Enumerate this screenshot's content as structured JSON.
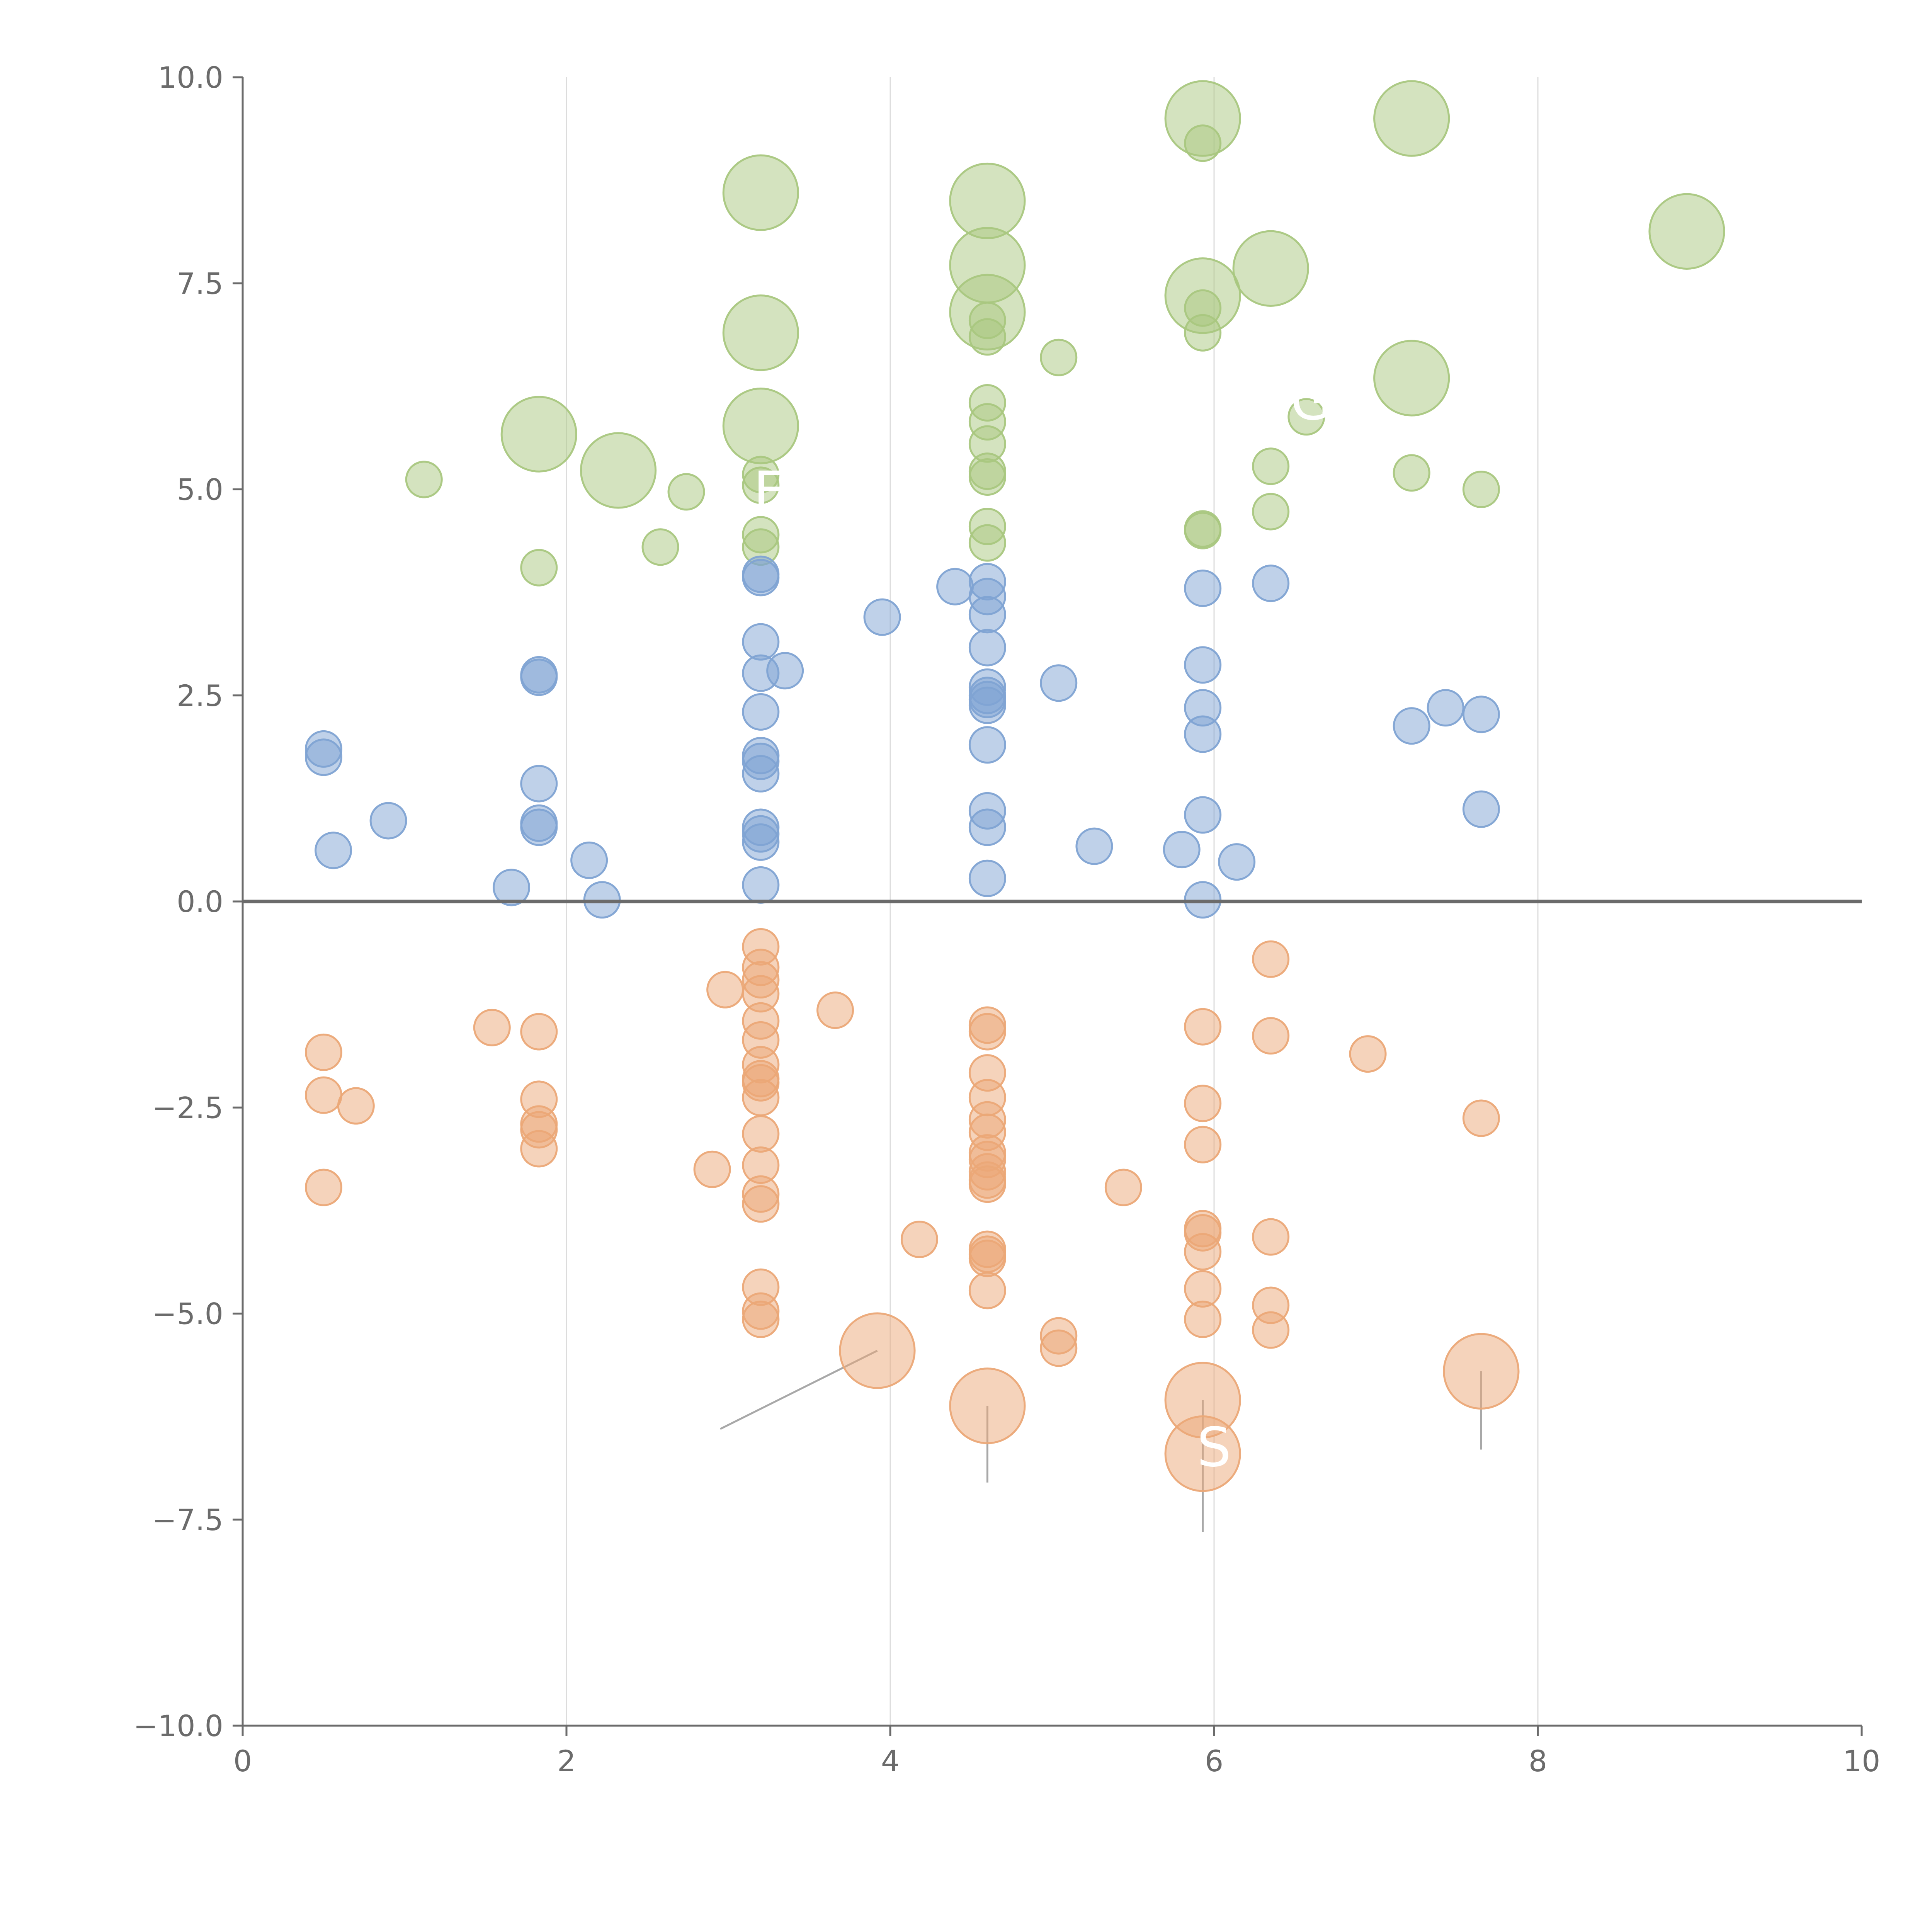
{
  "chart_data": {
    "type": "scatter",
    "title": "",
    "xlabel": "",
    "ylabel": "",
    "xlim": [
      0,
      10
    ],
    "ylim": [
      -10,
      10
    ],
    "x_ticks": [
      0,
      2,
      4,
      6,
      8,
      10
    ],
    "x_tick_labels": [
      "0",
      "2",
      "4",
      "6",
      "8",
      "10"
    ],
    "y_ticks": [
      -10,
      -7.5,
      -5,
      -2.5,
      0,
      2.5,
      5,
      7.5,
      10
    ],
    "y_tick_labels": [
      "−10.0",
      "−7.5",
      "−5.0",
      "−2.5",
      "0.0",
      "2.5",
      "5.0",
      "7.5",
      "10.0"
    ],
    "vertical_grid_at": [
      2,
      4,
      6,
      8
    ],
    "zero_line": 0,
    "size_unit": "relative (1 = smallest bubble)",
    "callouts": [
      {
        "text": "S",
        "x": 6.0,
        "y": -6.85
      },
      {
        "text": "G",
        "x": 6.6,
        "y": 5.85
      },
      {
        "text": "F",
        "x": 3.25,
        "y": 4.75
      }
    ],
    "series": [
      {
        "name": "upper",
        "color": "#a9c77f",
        "points": [
          [
            5.93,
            9.5,
            2.1
          ],
          [
            7.22,
            9.5,
            2.1
          ],
          [
            5.93,
            9.2,
            1
          ],
          [
            3.2,
            8.6,
            2.1
          ],
          [
            4.6,
            8.5,
            2.1
          ],
          [
            8.92,
            8.13,
            2.1
          ],
          [
            4.6,
            7.72,
            2.1
          ],
          [
            6.35,
            7.68,
            2.1
          ],
          [
            5.93,
            7.35,
            2.1
          ],
          [
            5.93,
            7.2,
            1
          ],
          [
            4.6,
            7.15,
            2.1
          ],
          [
            4.6,
            7.05,
            1
          ],
          [
            3.2,
            6.9,
            2.1
          ],
          [
            5.93,
            6.9,
            1
          ],
          [
            4.6,
            6.85,
            1
          ],
          [
            5.04,
            6.6,
            1
          ],
          [
            7.22,
            6.35,
            2.1
          ],
          [
            4.6,
            6.05,
            1
          ],
          [
            6.57,
            5.88,
            1
          ],
          [
            4.6,
            5.82,
            1
          ],
          [
            3.2,
            5.77,
            2.1
          ],
          [
            1.83,
            5.67,
            2.1
          ],
          [
            4.6,
            5.55,
            1
          ],
          [
            6.35,
            5.28,
            1
          ],
          [
            2.32,
            5.23,
            2.1
          ],
          [
            4.6,
            5.22,
            1
          ],
          [
            7.22,
            5.2,
            1
          ],
          [
            3.2,
            5.18,
            1
          ],
          [
            4.6,
            5.15,
            1
          ],
          [
            1.12,
            5.12,
            1
          ],
          [
            3.2,
            5.05,
            1
          ],
          [
            7.65,
            5.0,
            1
          ],
          [
            2.74,
            4.97,
            1
          ],
          [
            6.35,
            4.73,
            1
          ],
          [
            4.6,
            4.55,
            1
          ],
          [
            5.93,
            4.5,
            1
          ],
          [
            5.93,
            4.52,
            1
          ],
          [
            3.2,
            4.45,
            1
          ],
          [
            4.6,
            4.35,
            1
          ],
          [
            2.58,
            4.3,
            1
          ],
          [
            3.2,
            4.3,
            1
          ],
          [
            1.83,
            4.05,
            1
          ]
        ]
      },
      {
        "name": "middle",
        "color": "#7fa3d3",
        "points": [
          [
            3.2,
            3.97,
            1
          ],
          [
            3.2,
            3.93,
            1
          ],
          [
            4.6,
            3.88,
            1
          ],
          [
            6.35,
            3.86,
            1
          ],
          [
            4.4,
            3.82,
            1
          ],
          [
            5.93,
            3.8,
            1
          ],
          [
            4.6,
            3.7,
            1
          ],
          [
            4.6,
            3.48,
            1
          ],
          [
            3.95,
            3.45,
            1
          ],
          [
            3.2,
            3.15,
            1
          ],
          [
            4.6,
            3.08,
            1
          ],
          [
            5.93,
            2.87,
            1
          ],
          [
            3.35,
            2.8,
            1
          ],
          [
            3.2,
            2.77,
            1
          ],
          [
            1.83,
            2.72,
            1
          ],
          [
            1.83,
            2.75,
            1
          ],
          [
            5.04,
            2.65,
            1
          ],
          [
            4.6,
            2.6,
            1
          ],
          [
            4.6,
            2.5,
            1
          ],
          [
            4.6,
            2.45,
            1
          ],
          [
            4.6,
            2.38,
            1
          ],
          [
            5.93,
            2.35,
            1
          ],
          [
            7.43,
            2.35,
            1
          ],
          [
            3.2,
            2.3,
            1
          ],
          [
            7.65,
            2.27,
            1
          ],
          [
            7.22,
            2.13,
            1
          ],
          [
            5.93,
            2.03,
            1
          ],
          [
            4.6,
            1.9,
            1
          ],
          [
            0.5,
            1.85,
            1
          ],
          [
            0.5,
            1.75,
            1
          ],
          [
            3.2,
            1.77,
            1
          ],
          [
            3.2,
            1.7,
            1
          ],
          [
            3.2,
            1.55,
            1
          ],
          [
            1.83,
            1.43,
            1
          ],
          [
            7.65,
            1.12,
            1
          ],
          [
            4.6,
            1.1,
            1
          ],
          [
            5.93,
            1.05,
            1
          ],
          [
            0.9,
            0.98,
            1
          ],
          [
            1.83,
            0.95,
            1
          ],
          [
            1.83,
            0.9,
            1
          ],
          [
            4.6,
            0.9,
            1
          ],
          [
            3.2,
            0.9,
            1
          ],
          [
            3.2,
            0.82,
            1
          ],
          [
            3.2,
            0.72,
            1
          ],
          [
            5.26,
            0.67,
            1
          ],
          [
            5.8,
            0.63,
            1
          ],
          [
            0.56,
            0.62,
            1
          ],
          [
            2.14,
            0.5,
            1
          ],
          [
            6.14,
            0.48,
            1
          ],
          [
            4.6,
            0.28,
            1
          ],
          [
            3.2,
            0.2,
            1
          ],
          [
            1.66,
            0.17,
            1
          ],
          [
            2.22,
            0.02,
            1
          ],
          [
            5.93,
            0.02,
            1
          ]
        ]
      },
      {
        "name": "lower",
        "color": "#eba877",
        "points": [
          [
            3.2,
            -0.55,
            1
          ],
          [
            6.35,
            -0.7,
            1
          ],
          [
            3.2,
            -0.8,
            1
          ],
          [
            3.2,
            -0.95,
            1
          ],
          [
            2.98,
            -1.07,
            1
          ],
          [
            3.2,
            -1.12,
            1
          ],
          [
            3.66,
            -1.32,
            1
          ],
          [
            3.2,
            -1.45,
            1
          ],
          [
            4.6,
            -1.5,
            1
          ],
          [
            5.93,
            -1.52,
            1
          ],
          [
            1.54,
            -1.53,
            1
          ],
          [
            1.83,
            -1.58,
            1
          ],
          [
            4.6,
            -1.58,
            1
          ],
          [
            6.35,
            -1.63,
            1
          ],
          [
            3.2,
            -1.68,
            1
          ],
          [
            0.5,
            -1.83,
            1
          ],
          [
            6.95,
            -1.85,
            1
          ],
          [
            3.2,
            -1.98,
            1
          ],
          [
            4.6,
            -2.08,
            1
          ],
          [
            3.2,
            -2.15,
            1
          ],
          [
            3.2,
            -2.2,
            1
          ],
          [
            0.5,
            -2.35,
            1
          ],
          [
            3.2,
            -2.38,
            1
          ],
          [
            4.6,
            -2.38,
            1
          ],
          [
            1.83,
            -2.4,
            1
          ],
          [
            5.93,
            -2.45,
            1
          ],
          [
            0.7,
            -2.48,
            1
          ],
          [
            7.65,
            -2.63,
            1
          ],
          [
            4.6,
            -2.65,
            1
          ],
          [
            1.83,
            -2.7,
            1
          ],
          [
            1.83,
            -2.77,
            1
          ],
          [
            4.6,
            -2.8,
            1
          ],
          [
            3.2,
            -2.82,
            1
          ],
          [
            5.93,
            -2.95,
            1
          ],
          [
            1.83,
            -3.0,
            1
          ],
          [
            4.6,
            -3.05,
            1
          ],
          [
            4.6,
            -3.13,
            1
          ],
          [
            3.2,
            -3.2,
            1
          ],
          [
            2.9,
            -3.25,
            1
          ],
          [
            4.6,
            -3.28,
            1
          ],
          [
            4.6,
            -3.38,
            1
          ],
          [
            4.6,
            -3.43,
            1
          ],
          [
            5.44,
            -3.47,
            1
          ],
          [
            0.5,
            -3.47,
            1
          ],
          [
            3.2,
            -3.55,
            1
          ],
          [
            3.2,
            -3.67,
            1
          ],
          [
            5.93,
            -3.97,
            1
          ],
          [
            5.93,
            -4.02,
            1
          ],
          [
            6.35,
            -4.07,
            1
          ],
          [
            4.18,
            -4.1,
            1
          ],
          [
            5.93,
            -4.25,
            1
          ],
          [
            4.6,
            -4.22,
            1
          ],
          [
            4.6,
            -4.28,
            1
          ],
          [
            4.6,
            -4.33,
            1
          ],
          [
            3.2,
            -4.68,
            1
          ],
          [
            5.93,
            -4.7,
            1
          ],
          [
            4.6,
            -4.72,
            1
          ],
          [
            6.35,
            -4.9,
            1
          ],
          [
            3.2,
            -4.97,
            1
          ],
          [
            3.2,
            -5.07,
            1
          ],
          [
            5.93,
            -5.07,
            1
          ],
          [
            6.35,
            -5.2,
            1
          ],
          [
            5.04,
            -5.27,
            1
          ],
          [
            5.04,
            -5.42,
            1
          ],
          [
            3.92,
            -5.45,
            2.1
          ],
          [
            7.65,
            -5.7,
            2.1
          ],
          [
            5.93,
            -6.05,
            2.1
          ],
          [
            4.6,
            -6.12,
            2.1
          ],
          [
            5.93,
            -6.7,
            2.1
          ]
        ]
      }
    ],
    "leader_lines": [
      {
        "from": [
          3.92,
          -5.45
        ],
        "to": [
          2.95,
          -6.4
        ]
      },
      {
        "from": [
          4.6,
          -6.12
        ],
        "to": [
          4.6,
          -7.05
        ]
      },
      {
        "from": [
          5.93,
          -6.05
        ],
        "to": [
          5.93,
          -7.65
        ]
      },
      {
        "from": [
          7.65,
          -5.7
        ],
        "to": [
          7.65,
          -6.65
        ]
      }
    ]
  }
}
